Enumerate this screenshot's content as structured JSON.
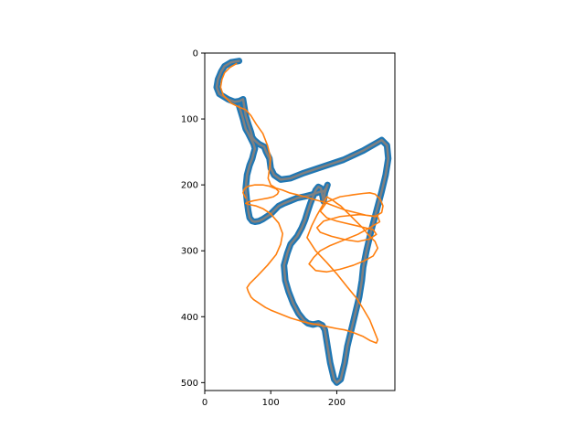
{
  "chart_data": {
    "type": "line",
    "title": "",
    "xlabel": "",
    "ylabel": "",
    "xlim": [
      0,
      288
    ],
    "ylim": [
      512,
      0
    ],
    "y_inverted": true,
    "grid": false,
    "legend": "none",
    "xticks": [
      0,
      100,
      200
    ],
    "yticks": [
      0,
      100,
      200,
      300,
      400,
      500
    ],
    "background_image": "binary track mask (black boundary on white) behind the plotted lines",
    "series": [
      {
        "color": "#1f77b4",
        "style": "thick-line",
        "x": [
          52,
          40,
          30,
          25,
          20,
          18,
          22,
          35,
          45,
          52,
          58,
          60,
          62,
          66,
          70,
          72,
          75,
          82,
          90,
          93,
          98,
          100,
          105,
          115,
          130,
          150,
          180,
          210,
          240,
          268,
          276,
          278,
          274,
          268,
          260,
          252,
          245,
          240,
          238,
          234,
          228,
          222,
          216,
          212,
          206,
          200,
          196,
          190,
          186,
          182,
          178,
          172,
          164,
          156,
          150,
          142,
          134,
          127,
          122,
          120,
          125,
          130,
          140,
          147,
          152,
          156,
          160,
          164,
          168,
          172,
          176,
          178,
          180,
          182,
          186,
          184,
          180,
          176,
          170,
          162,
          150,
          140,
          130,
          120,
          112,
          106,
          100,
          94,
          88,
          82,
          76,
          72,
          68,
          66,
          64,
          62,
          64,
          68,
          72,
          74,
          76,
          74,
          70,
          66,
          62,
          60,
          58,
          55,
          52
        ],
        "y": [
          12,
          14,
          20,
          28,
          40,
          52,
          62,
          70,
          74,
          73,
          70,
          82,
          95,
          108,
          120,
          128,
          132,
          138,
          142,
          150,
          160,
          175,
          185,
          192,
          190,
          182,
          172,
          162,
          148,
          132,
          140,
          160,
          185,
          210,
          240,
          270,
          300,
          325,
          345,
          370,
          395,
          420,
          445,
          470,
          495,
          500,
          495,
          470,
          445,
          420,
          413,
          410,
          412,
          410,
          405,
          395,
          380,
          362,
          345,
          322,
          304,
          290,
          278,
          265,
          253,
          240,
          228,
          218,
          208,
          203,
          205,
          215,
          225,
          212,
          200,
          205,
          210,
          210,
          212,
          215,
          218,
          220,
          224,
          228,
          232,
          238,
          244,
          248,
          252,
          255,
          256,
          255,
          250,
          240,
          225,
          205,
          185,
          170,
          160,
          152,
          145,
          138,
          130,
          122,
          115,
          108,
          100,
          90,
          80
        ]
      },
      {
        "color": "#808080",
        "style": "thin-line",
        "x": [
          52,
          40,
          30,
          25,
          20,
          18,
          22,
          35,
          45,
          52,
          58,
          60,
          62,
          66,
          70,
          72,
          75,
          82,
          90,
          93,
          98,
          100,
          105,
          115,
          130,
          150,
          180,
          210,
          240,
          268,
          276,
          278,
          274,
          268,
          260,
          252,
          245,
          240,
          238,
          234,
          228,
          222,
          216,
          212,
          206,
          200,
          196,
          190,
          186,
          182,
          178,
          172,
          164,
          156,
          150,
          142,
          134,
          127,
          122,
          120,
          125,
          130,
          140,
          147,
          152,
          156,
          160,
          164,
          168,
          172,
          176,
          178,
          180,
          182,
          186,
          184,
          180,
          176,
          170,
          162,
          150,
          140,
          130,
          120,
          112,
          106,
          100,
          94,
          88,
          82,
          76,
          72,
          68,
          66,
          64,
          62,
          64,
          68,
          72,
          74,
          76,
          74,
          70,
          66,
          62,
          60,
          58,
          55,
          52
        ],
        "y": [
          12,
          14,
          20,
          28,
          40,
          52,
          62,
          70,
          74,
          73,
          70,
          82,
          95,
          108,
          120,
          128,
          132,
          138,
          142,
          150,
          160,
          175,
          185,
          192,
          190,
          182,
          172,
          162,
          148,
          132,
          140,
          160,
          185,
          210,
          240,
          270,
          300,
          325,
          345,
          370,
          395,
          420,
          445,
          470,
          495,
          500,
          495,
          470,
          445,
          420,
          413,
          410,
          412,
          410,
          405,
          395,
          380,
          362,
          345,
          322,
          304,
          290,
          278,
          265,
          253,
          240,
          228,
          218,
          208,
          203,
          205,
          215,
          225,
          212,
          200,
          205,
          210,
          210,
          212,
          215,
          218,
          220,
          224,
          228,
          232,
          238,
          244,
          248,
          252,
          255,
          256,
          255,
          250,
          240,
          225,
          205,
          185,
          170,
          160,
          152,
          145,
          138,
          130,
          122,
          115,
          108,
          100,
          90,
          80
        ]
      },
      {
        "color": "#ff7f0e",
        "style": "line",
        "x": [
          48,
          38,
          30,
          26,
          24,
          28,
          40,
          52,
          62,
          70,
          78,
          88,
          95,
          100,
          98,
          96,
          100,
          108,
          118,
          128,
          140,
          152,
          165,
          180,
          196,
          212,
          228,
          244,
          258,
          268,
          270,
          266,
          258,
          250,
          240,
          225,
          205,
          185,
          175,
          185,
          200,
          230,
          255,
          260,
          250,
          232,
          212,
          192,
          175,
          170,
          180,
          205,
          235,
          262,
          265,
          250,
          232,
          210,
          190,
          175,
          165,
          158,
          168,
          185,
          205,
          225,
          242,
          255,
          262,
          258,
          248,
          240,
          232,
          224,
          216,
          210,
          206,
          200,
          196,
          192,
          188,
          185,
          184,
          178,
          170,
          162,
          155,
          168,
          185,
          200,
          216,
          230,
          240,
          250,
          256,
          262,
          260,
          250,
          240,
          225,
          212,
          200,
          190,
          180,
          170,
          160,
          150,
          140,
          130,
          120,
          110,
          100,
          92,
          86,
          80,
          74,
          70,
          68,
          66,
          64,
          68,
          80,
          95,
          108,
          115,
          118,
          112,
          100,
          88,
          78,
          68,
          62,
          66,
          74,
          85,
          96,
          104,
          110,
          112,
          108,
          98,
          88,
          76,
          66,
          60,
          58,
          62
        ],
        "y": [
          16,
          22,
          30,
          40,
          52,
          64,
          76,
          82,
          86,
          95,
          108,
          122,
          140,
          160,
          175,
          190,
          200,
          205,
          208,
          212,
          215,
          218,
          222,
          226,
          232,
          238,
          242,
          246,
          248,
          242,
          232,
          222,
          214,
          212,
          213,
          215,
          218,
          226,
          240,
          250,
          255,
          262,
          268,
          275,
          282,
          286,
          283,
          278,
          272,
          265,
          255,
          248,
          245,
          248,
          256,
          265,
          275,
          284,
          292,
          300,
          310,
          320,
          330,
          332,
          328,
          322,
          315,
          308,
          296,
          286,
          276,
          266,
          258,
          250,
          242,
          236,
          232,
          228,
          225,
          222,
          220,
          218,
          220,
          232,
          246,
          262,
          280,
          300,
          318,
          335,
          355,
          372,
          388,
          405,
          420,
          435,
          440,
          436,
          430,
          424,
          420,
          418,
          416,
          414,
          412,
          410,
          408,
          405,
          402,
          398,
          394,
          390,
          386,
          382,
          378,
          374,
          370,
          366,
          362,
          356,
          350,
          338,
          322,
          306,
          290,
          274,
          258,
          244,
          236,
          232,
          230,
          228,
          226,
          224,
          222,
          220,
          218,
          214,
          210,
          206,
          202,
          200,
          200,
          202,
          206,
          212,
          220
        ]
      }
    ]
  }
}
